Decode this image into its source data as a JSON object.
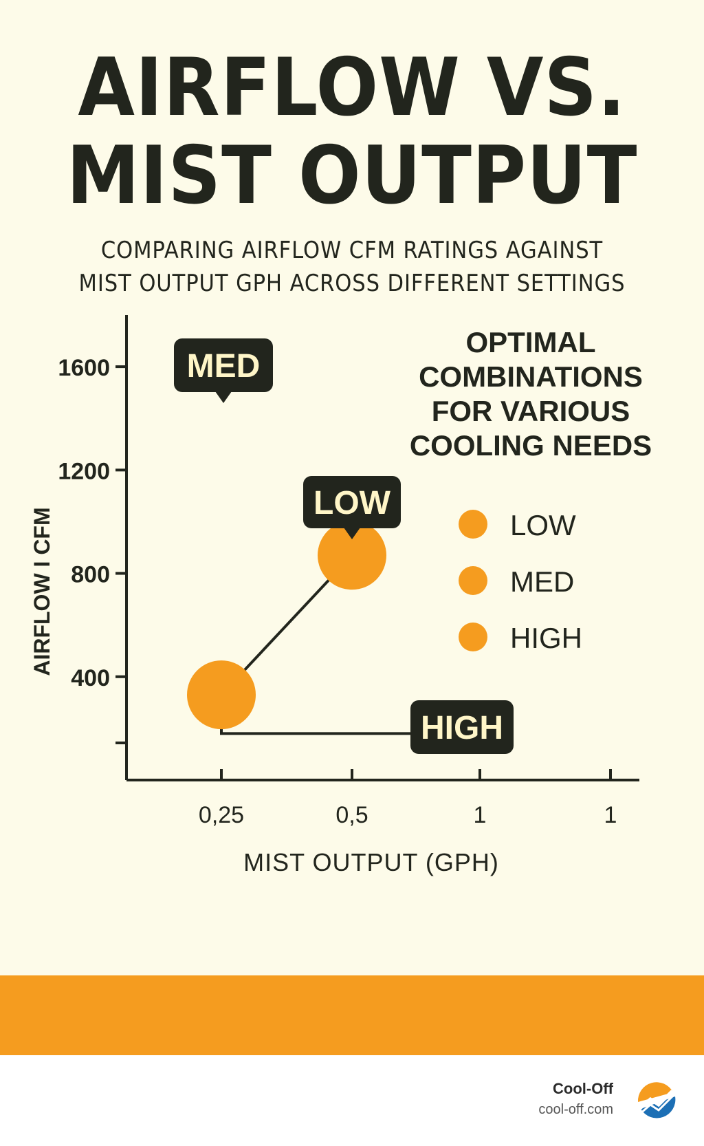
{
  "header": {
    "title_line1": "AIRFLOW VS.",
    "title_line2": "MIST OUTPUT",
    "subtitle_line1": "COMPARING AIRFLOW CFM RATINGS AGAINST",
    "subtitle_line2": "MIST OUTPUT GPH ACROSS DIFFERENT SETTINGS"
  },
  "chart_data": {
    "type": "scatter",
    "title": "AIRFLOW VS. MIST OUTPUT",
    "xlabel": "MIST OUTPUT (GPH)",
    "ylabel": "AIRFLOW I CFM",
    "x_ticks": [
      "0,25",
      "0,5",
      "1",
      "1"
    ],
    "y_ticks": [
      1600,
      1200,
      800,
      400
    ],
    "ylim": [
      0,
      1800
    ],
    "points": [
      {
        "name": "MED",
        "x": 0.25,
        "y": 330,
        "label_position": "above"
      },
      {
        "name": "LOW",
        "x": 0.5,
        "y": 870,
        "label_position": "above"
      }
    ],
    "callouts": [
      {
        "name": "HIGH",
        "anchor_x": 0.25,
        "anchor_y": 180
      }
    ],
    "legend": {
      "title_lines": [
        "OPTIMAL",
        "COMBINATIONS",
        "FOR VARIOUS",
        "COOLING NEEDS"
      ],
      "items": [
        "LOW",
        "MED",
        "HIGH"
      ],
      "position": "top-right"
    }
  },
  "colors": {
    "background": "#fdfbe9",
    "ink": "#22251d",
    "accent": "#f59c1f",
    "label_text": "#fff6c8"
  },
  "footer": {
    "brand_name": "Cool-Off",
    "brand_url": "cool-off.com",
    "logo_icon": "chart-trend-logo-icon"
  }
}
